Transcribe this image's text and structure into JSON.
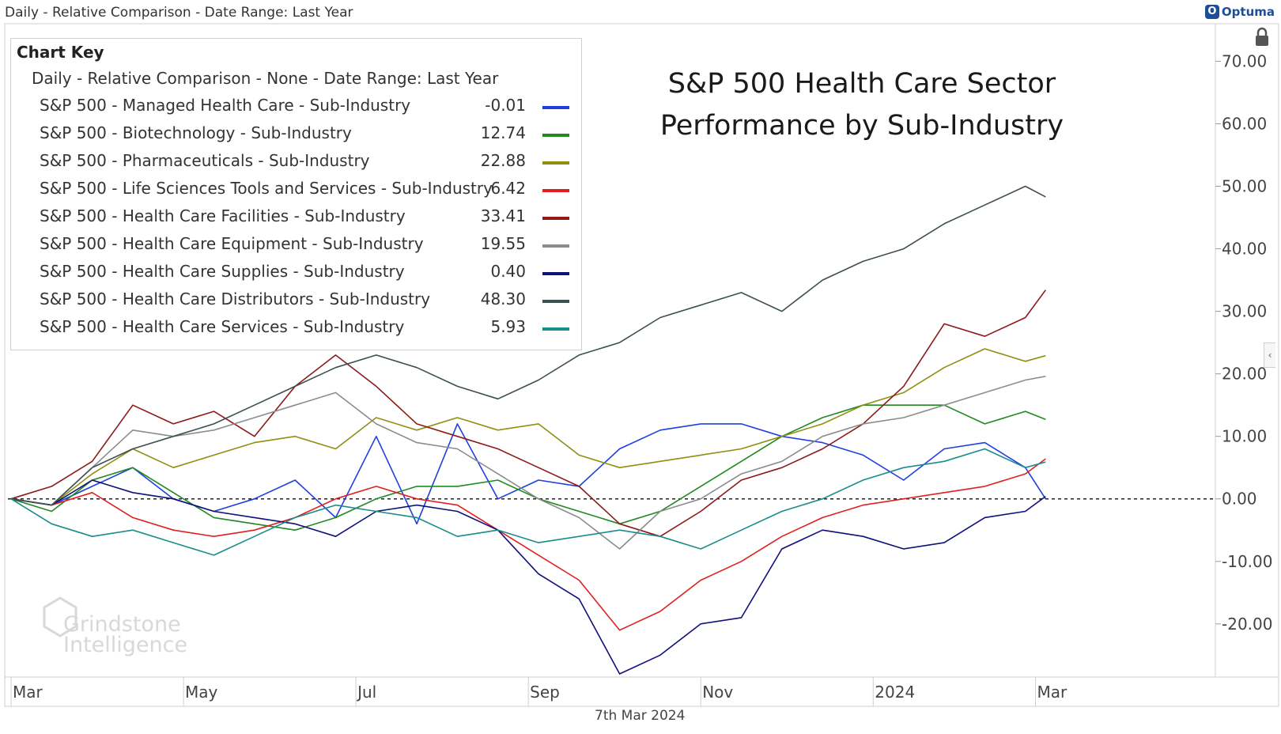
{
  "header": {
    "title": "Daily - Relative Comparison - Date Range: Last Year"
  },
  "brand": {
    "name": "Optuma",
    "mark": "O"
  },
  "chart_title": [
    "S&P 500 Health Care Sector",
    "Performance by Sub-Industry"
  ],
  "legend": {
    "title": "Chart Key",
    "subtitle": "Daily - Relative Comparison - None - Date Range: Last Year"
  },
  "watermark": {
    "line1": "Grindstone",
    "line2": "Intelligence"
  },
  "date_label": "7th Mar 2024",
  "chart_data": {
    "type": "line",
    "xlabel": "",
    "ylabel": "",
    "x_ticks": [
      "Mar",
      "May",
      "Jul",
      "Sep",
      "Nov",
      "2024",
      "Mar"
    ],
    "y_ticks": [
      "-20.00",
      "-10.00",
      "0.00",
      "10.00",
      "20.00",
      "30.00",
      "40.00",
      "50.00",
      "60.00",
      "70.00"
    ],
    "ylim": [
      -28.5,
      76
    ],
    "xlim": [
      0,
      52
    ],
    "baseline": 0,
    "grid": false,
    "legend_position": "top-left",
    "series": [
      {
        "name": "S&P 500 - Managed Health Care - Sub-Industry",
        "last": "-0.01",
        "color": "#1f3fe0",
        "points": [
          [
            0,
            0
          ],
          [
            2,
            -1
          ],
          [
            4,
            2
          ],
          [
            6,
            5
          ],
          [
            8,
            0
          ],
          [
            10,
            -2
          ],
          [
            12,
            0
          ],
          [
            14,
            3
          ],
          [
            16,
            -3
          ],
          [
            18,
            10
          ],
          [
            20,
            -4
          ],
          [
            22,
            12
          ],
          [
            24,
            0
          ],
          [
            26,
            3
          ],
          [
            28,
            2
          ],
          [
            30,
            8
          ],
          [
            32,
            11
          ],
          [
            34,
            12
          ],
          [
            36,
            12
          ],
          [
            38,
            10
          ],
          [
            40,
            9
          ],
          [
            42,
            7
          ],
          [
            44,
            3
          ],
          [
            46,
            8
          ],
          [
            48,
            9
          ],
          [
            50,
            5
          ],
          [
            51,
            0
          ]
        ]
      },
      {
        "name": "S&P 500 - Biotechnology - Sub-Industry",
        "last": "12.74",
        "color": "#1f8a1f",
        "points": [
          [
            0,
            0
          ],
          [
            2,
            -2
          ],
          [
            4,
            3
          ],
          [
            6,
            5
          ],
          [
            8,
            1
          ],
          [
            10,
            -3
          ],
          [
            12,
            -4
          ],
          [
            14,
            -5
          ],
          [
            16,
            -3
          ],
          [
            18,
            0
          ],
          [
            20,
            2
          ],
          [
            22,
            2
          ],
          [
            24,
            3
          ],
          [
            26,
            0
          ],
          [
            28,
            -2
          ],
          [
            30,
            -4
          ],
          [
            32,
            -2
          ],
          [
            34,
            2
          ],
          [
            36,
            6
          ],
          [
            38,
            10
          ],
          [
            40,
            13
          ],
          [
            42,
            15
          ],
          [
            44,
            15
          ],
          [
            46,
            15
          ],
          [
            48,
            12
          ],
          [
            50,
            14
          ],
          [
            51,
            12.7
          ]
        ]
      },
      {
        "name": "S&P 500 - Pharmaceuticals - Sub-Industry",
        "last": "22.88",
        "color": "#8f8f12",
        "points": [
          [
            0,
            0
          ],
          [
            2,
            -1
          ],
          [
            4,
            4
          ],
          [
            6,
            8
          ],
          [
            8,
            5
          ],
          [
            10,
            7
          ],
          [
            12,
            9
          ],
          [
            14,
            10
          ],
          [
            16,
            8
          ],
          [
            18,
            13
          ],
          [
            20,
            11
          ],
          [
            22,
            13
          ],
          [
            24,
            11
          ],
          [
            26,
            12
          ],
          [
            28,
            7
          ],
          [
            30,
            5
          ],
          [
            32,
            6
          ],
          [
            34,
            7
          ],
          [
            36,
            8
          ],
          [
            38,
            10
          ],
          [
            40,
            12
          ],
          [
            42,
            15
          ],
          [
            44,
            17
          ],
          [
            46,
            21
          ],
          [
            48,
            24
          ],
          [
            50,
            22
          ],
          [
            51,
            22.9
          ]
        ]
      },
      {
        "name": "S&P 500 - Life Sciences Tools and Services - Sub-Industry",
        "last": "6.42",
        "color": "#e02020",
        "points": [
          [
            0,
            0
          ],
          [
            2,
            -1
          ],
          [
            4,
            1
          ],
          [
            6,
            -3
          ],
          [
            8,
            -5
          ],
          [
            10,
            -6
          ],
          [
            12,
            -5
          ],
          [
            14,
            -3
          ],
          [
            16,
            0
          ],
          [
            18,
            2
          ],
          [
            20,
            0
          ],
          [
            22,
            -1
          ],
          [
            24,
            -5
          ],
          [
            26,
            -9
          ],
          [
            28,
            -13
          ],
          [
            30,
            -21
          ],
          [
            32,
            -18
          ],
          [
            34,
            -13
          ],
          [
            36,
            -10
          ],
          [
            38,
            -6
          ],
          [
            40,
            -3
          ],
          [
            42,
            -1
          ],
          [
            44,
            0
          ],
          [
            46,
            1
          ],
          [
            48,
            2
          ],
          [
            50,
            4
          ],
          [
            51,
            6.4
          ]
        ]
      },
      {
        "name": "S&P 500 - Health Care Facilities - Sub-Industry",
        "last": "33.41",
        "color": "#8b1a1a",
        "points": [
          [
            0,
            0
          ],
          [
            2,
            2
          ],
          [
            4,
            6
          ],
          [
            6,
            15
          ],
          [
            8,
            12
          ],
          [
            10,
            14
          ],
          [
            12,
            10
          ],
          [
            14,
            18
          ],
          [
            16,
            23
          ],
          [
            18,
            18
          ],
          [
            20,
            12
          ],
          [
            22,
            10
          ],
          [
            24,
            8
          ],
          [
            26,
            5
          ],
          [
            28,
            2
          ],
          [
            30,
            -4
          ],
          [
            32,
            -6
          ],
          [
            34,
            -2
          ],
          [
            36,
            3
          ],
          [
            38,
            5
          ],
          [
            40,
            8
          ],
          [
            42,
            12
          ],
          [
            44,
            18
          ],
          [
            46,
            28
          ],
          [
            48,
            26
          ],
          [
            50,
            29
          ],
          [
            51,
            33.4
          ]
        ]
      },
      {
        "name": "S&P 500 - Health Care Equipment - Sub-Industry",
        "last": "19.55",
        "color": "#8c8c8c",
        "points": [
          [
            0,
            0
          ],
          [
            2,
            -1
          ],
          [
            4,
            5
          ],
          [
            6,
            11
          ],
          [
            8,
            10
          ],
          [
            10,
            11
          ],
          [
            12,
            13
          ],
          [
            14,
            15
          ],
          [
            16,
            17
          ],
          [
            18,
            12
          ],
          [
            20,
            9
          ],
          [
            22,
            8
          ],
          [
            24,
            4
          ],
          [
            26,
            0
          ],
          [
            28,
            -3
          ],
          [
            30,
            -8
          ],
          [
            32,
            -2
          ],
          [
            34,
            0
          ],
          [
            36,
            4
          ],
          [
            38,
            6
          ],
          [
            40,
            10
          ],
          [
            42,
            12
          ],
          [
            44,
            13
          ],
          [
            46,
            15
          ],
          [
            48,
            17
          ],
          [
            50,
            19
          ],
          [
            51,
            19.6
          ]
        ]
      },
      {
        "name": "S&P 500 - Health Care Supplies - Sub-Industry",
        "last": "0.40",
        "color": "#10107a",
        "points": [
          [
            0,
            0
          ],
          [
            2,
            -1
          ],
          [
            4,
            3
          ],
          [
            6,
            1
          ],
          [
            8,
            0
          ],
          [
            10,
            -2
          ],
          [
            12,
            -3
          ],
          [
            14,
            -4
          ],
          [
            16,
            -6
          ],
          [
            18,
            -2
          ],
          [
            20,
            -1
          ],
          [
            22,
            -2
          ],
          [
            24,
            -5
          ],
          [
            26,
            -12
          ],
          [
            28,
            -16
          ],
          [
            30,
            -28
          ],
          [
            32,
            -25
          ],
          [
            34,
            -20
          ],
          [
            36,
            -19
          ],
          [
            38,
            -8
          ],
          [
            40,
            -5
          ],
          [
            42,
            -6
          ],
          [
            44,
            -8
          ],
          [
            46,
            -7
          ],
          [
            48,
            -3
          ],
          [
            50,
            -2
          ],
          [
            51,
            0.4
          ]
        ]
      },
      {
        "name": "S&P 500 - Health Care Distributors - Sub-Industry",
        "last": "48.30",
        "color": "#3d5050",
        "points": [
          [
            0,
            0
          ],
          [
            2,
            -1
          ],
          [
            4,
            5
          ],
          [
            6,
            8
          ],
          [
            8,
            10
          ],
          [
            10,
            12
          ],
          [
            12,
            15
          ],
          [
            14,
            18
          ],
          [
            16,
            21
          ],
          [
            18,
            23
          ],
          [
            20,
            21
          ],
          [
            22,
            18
          ],
          [
            24,
            16
          ],
          [
            26,
            19
          ],
          [
            28,
            23
          ],
          [
            30,
            25
          ],
          [
            32,
            29
          ],
          [
            34,
            31
          ],
          [
            36,
            33
          ],
          [
            38,
            30
          ],
          [
            40,
            35
          ],
          [
            42,
            38
          ],
          [
            44,
            40
          ],
          [
            46,
            44
          ],
          [
            48,
            47
          ],
          [
            50,
            50
          ],
          [
            51,
            48.3
          ]
        ]
      },
      {
        "name": "S&P 500 - Health Care Services - Sub-Industry",
        "last": "5.93",
        "color": "#1a8c8c",
        "points": [
          [
            0,
            0
          ],
          [
            2,
            -4
          ],
          [
            4,
            -6
          ],
          [
            6,
            -5
          ],
          [
            8,
            -7
          ],
          [
            10,
            -9
          ],
          [
            12,
            -6
          ],
          [
            14,
            -3
          ],
          [
            16,
            -1
          ],
          [
            18,
            -2
          ],
          [
            20,
            -3
          ],
          [
            22,
            -6
          ],
          [
            24,
            -5
          ],
          [
            26,
            -7
          ],
          [
            28,
            -6
          ],
          [
            30,
            -5
          ],
          [
            32,
            -6
          ],
          [
            34,
            -8
          ],
          [
            36,
            -5
          ],
          [
            38,
            -2
          ],
          [
            40,
            0
          ],
          [
            42,
            3
          ],
          [
            44,
            5
          ],
          [
            46,
            6
          ],
          [
            48,
            8
          ],
          [
            50,
            5
          ],
          [
            51,
            5.9
          ]
        ]
      }
    ]
  }
}
